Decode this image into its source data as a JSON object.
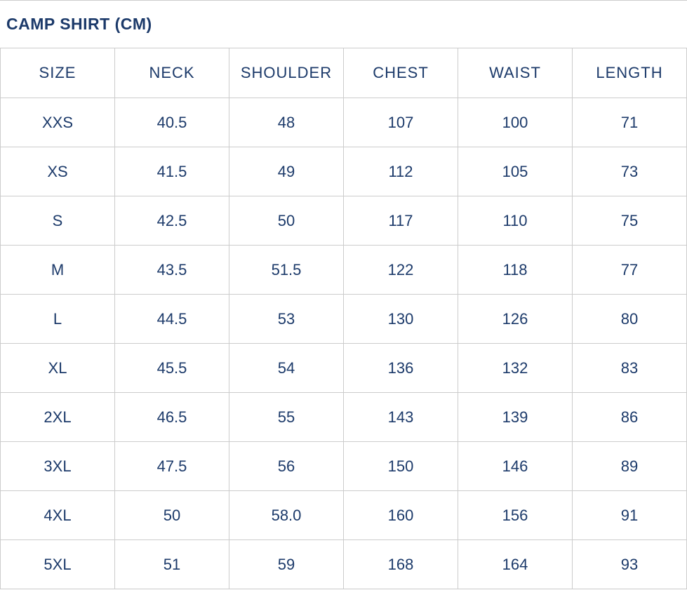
{
  "title": "CAMP SHIRT (CM)",
  "colors": {
    "text": "#1c3a6a",
    "grid": "#cccccc",
    "background": "#ffffff"
  },
  "table": {
    "headers": [
      "SIZE",
      "NECK",
      "SHOULDER",
      "CHEST",
      "WAIST",
      "LENGTH"
    ],
    "rows": [
      [
        "XXS",
        "40.5",
        "48",
        "107",
        "100",
        "71"
      ],
      [
        "XS",
        "41.5",
        "49",
        "112",
        "105",
        "73"
      ],
      [
        "S",
        "42.5",
        "50",
        "117",
        "110",
        "75"
      ],
      [
        "M",
        "43.5",
        "51.5",
        "122",
        "118",
        "77"
      ],
      [
        "L",
        "44.5",
        "53",
        "130",
        "126",
        "80"
      ],
      [
        "XL",
        "45.5",
        "54",
        "136",
        "132",
        "83"
      ],
      [
        "2XL",
        "46.5",
        "55",
        "143",
        "139",
        "86"
      ],
      [
        "3XL",
        "47.5",
        "56",
        "150",
        "146",
        "89"
      ],
      [
        "4XL",
        "50",
        "58.0",
        "160",
        "156",
        "91"
      ],
      [
        "5XL",
        "51",
        "59",
        "168",
        "164",
        "93"
      ]
    ]
  },
  "chart_data": {
    "type": "table",
    "title": "CAMP SHIRT (CM)",
    "unit": "cm",
    "columns": [
      "SIZE",
      "NECK",
      "SHOULDER",
      "CHEST",
      "WAIST",
      "LENGTH"
    ],
    "rows": [
      {
        "size": "XXS",
        "neck": 40.5,
        "shoulder": 48,
        "chest": 107,
        "waist": 100,
        "length": 71
      },
      {
        "size": "XS",
        "neck": 41.5,
        "shoulder": 49,
        "chest": 112,
        "waist": 105,
        "length": 73
      },
      {
        "size": "S",
        "neck": 42.5,
        "shoulder": 50,
        "chest": 117,
        "waist": 110,
        "length": 75
      },
      {
        "size": "M",
        "neck": 43.5,
        "shoulder": 51.5,
        "chest": 122,
        "waist": 118,
        "length": 77
      },
      {
        "size": "L",
        "neck": 44.5,
        "shoulder": 53,
        "chest": 130,
        "waist": 126,
        "length": 80
      },
      {
        "size": "XL",
        "neck": 45.5,
        "shoulder": 54,
        "chest": 136,
        "waist": 132,
        "length": 83
      },
      {
        "size": "2XL",
        "neck": 46.5,
        "shoulder": 55,
        "chest": 143,
        "waist": 139,
        "length": 86
      },
      {
        "size": "3XL",
        "neck": 47.5,
        "shoulder": 56,
        "chest": 150,
        "waist": 146,
        "length": 89
      },
      {
        "size": "4XL",
        "neck": 50,
        "shoulder": 58.0,
        "chest": 160,
        "waist": 156,
        "length": 91
      },
      {
        "size": "5XL",
        "neck": 51,
        "shoulder": 59,
        "chest": 168,
        "waist": 164,
        "length": 93
      }
    ],
    "layout": {
      "grid": true,
      "header_row": true,
      "text_align": "center"
    }
  }
}
